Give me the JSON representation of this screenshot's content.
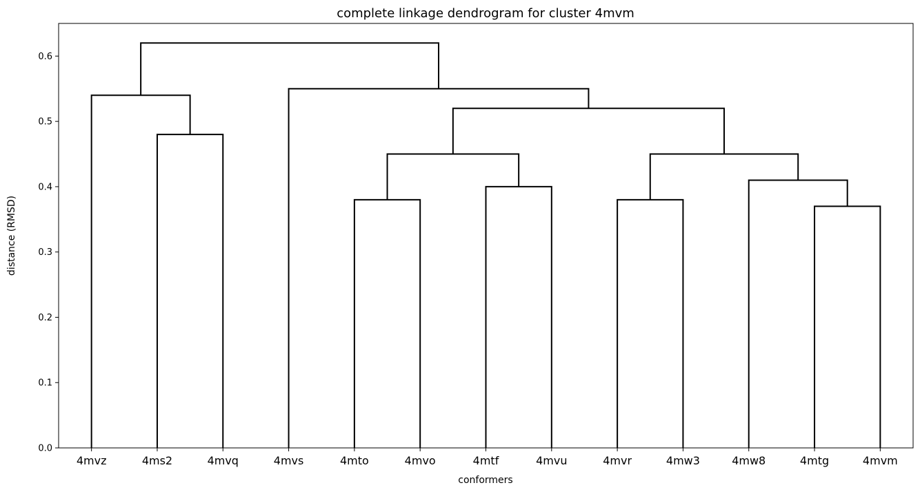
{
  "chart_data": {
    "type": "dendrogram",
    "title": "complete linkage dendrogram for cluster 4mvm",
    "xlabel": "conformers",
    "ylabel": "distance (RMSD)",
    "ylim": [
      0,
      0.65
    ],
    "yticks": [
      "0.0",
      "0.1",
      "0.2",
      "0.3",
      "0.4",
      "0.5",
      "0.6"
    ],
    "leaves": [
      "4mvz",
      "4ms2",
      "4mvq",
      "4mvs",
      "4mto",
      "4mvo",
      "4mtf",
      "4mvu",
      "4mvr",
      "4mw3",
      "4mw8",
      "4mtg",
      "4mvm"
    ],
    "merges": [
      {
        "a": "4mtg",
        "b": "4mvm",
        "distance": 0.37
      },
      {
        "a": "4mto",
        "b": "4mvo",
        "distance": 0.38
      },
      {
        "a": "4mvr",
        "b": "4mw3",
        "distance": 0.38
      },
      {
        "a": "4mtf",
        "b": "4mvu",
        "distance": 0.4
      },
      {
        "a": "4mw8",
        "b": "4mtg+4mvm",
        "distance": 0.41
      },
      {
        "a": "4mto+4mvo",
        "b": "4mtf+4mvu",
        "distance": 0.45
      },
      {
        "a": "4mvr+4mw3",
        "b": "4mw8+4mtg+4mvm",
        "distance": 0.45
      },
      {
        "a": "4ms2",
        "b": "4mvq",
        "distance": 0.48
      },
      {
        "a": "4mto..4mvu",
        "b": "4mvr..4mvm",
        "distance": 0.52
      },
      {
        "a": "4mvz",
        "b": "4ms2+4mvq",
        "distance": 0.54
      },
      {
        "a": "4mvs",
        "b": "4mto..4mvm",
        "distance": 0.55
      },
      {
        "a": "4mvz+4ms2+4mvq",
        "b": "4mvs..4mvm",
        "distance": 0.62
      }
    ],
    "grid": false,
    "line_color": "#000000"
  }
}
